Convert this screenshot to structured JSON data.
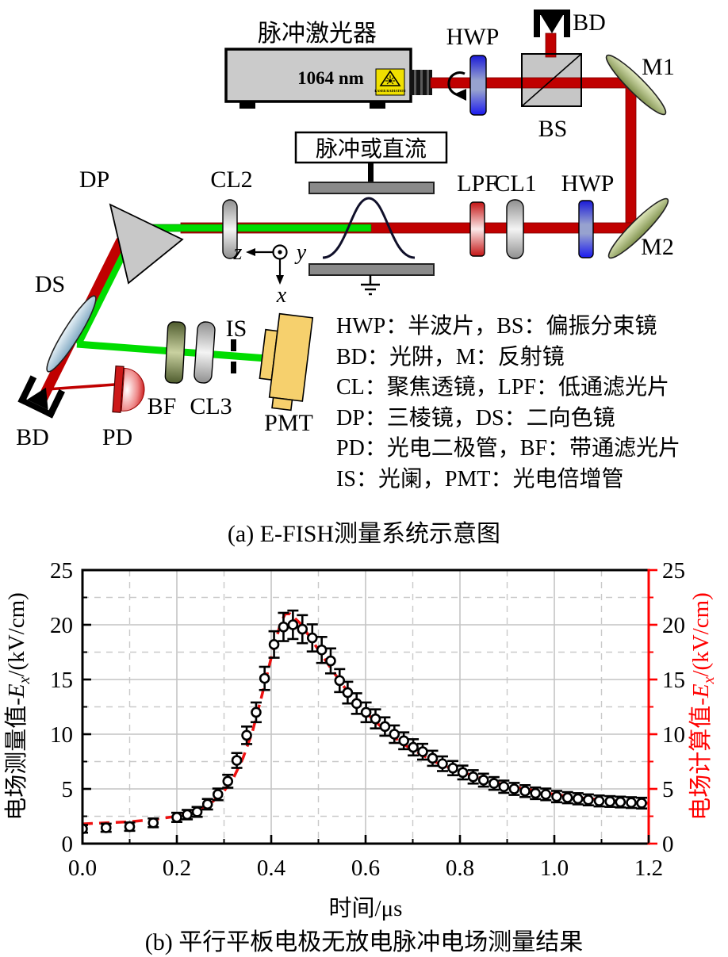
{
  "diagram": {
    "labels": {
      "laser_title": "脉冲激光器",
      "wavelength": "1064 nm",
      "sticker": "LASER RADIATION",
      "hwp1": "HWP",
      "bd_top": "BD",
      "bs": "BS",
      "m1": "M1",
      "m2": "M2",
      "lpf": "LPF",
      "cl1": "CL1",
      "hwp2": "HWP",
      "pulse_source": "脉冲或直流",
      "cl2": "CL2",
      "dp": "DP",
      "ds": "DS",
      "bd_bottom": "BD",
      "pd": "PD",
      "bf": "BF",
      "cl3": "CL3",
      "is": "IS",
      "pmt": "PMT",
      "axis_z": "z",
      "axis_y": "y",
      "axis_x": "x"
    },
    "legend_lines": [
      "HWP：半波片，BS：偏振分束镜",
      "BD：光阱，M：反射镜",
      "CL：聚焦透镜，LPF：低通滤光片",
      "DP：三棱镜，DS：二向色镜",
      "PD：光电二极管，BF：带通滤光片",
      "IS：光阑，PMT：光电倍增管"
    ],
    "colors": {
      "beam_red": "#c00000",
      "beam_green": "#00dd00",
      "mirror_green": "#9cab63",
      "dichroic_blue": "#a9c4d6",
      "hwp_blue": "#2020dd",
      "pmt_yellow": "#f6d06d"
    }
  },
  "captions": {
    "a": "(a) E-FISH测量系统示意图",
    "b": "(b) 平行平板电极无放电脉冲电场测量结果"
  },
  "chart_data": {
    "type": "scatter-errorbar+dashed-line",
    "title": "",
    "xlabel": "时间/μs",
    "ylabel_left": {
      "text": "电场测量值-",
      "var": "E",
      "sub": "x",
      "unit": "/(kV/cm)"
    },
    "ylabel_right": {
      "text": "电场计算值-",
      "var": "E",
      "sub": "x",
      "unit": "/(kV/cm)"
    },
    "xlim": [
      0,
      1.2
    ],
    "ylim": [
      0,
      25
    ],
    "x_major_ticks": [
      0.0,
      0.2,
      0.4,
      0.6,
      0.8,
      1.0,
      1.2
    ],
    "x_minor_ticks": [
      0.1,
      0.3,
      0.5,
      0.7,
      0.9,
      1.1
    ],
    "y_major_ticks": [
      0,
      5,
      10,
      15,
      20,
      25
    ],
    "y_minor_ticks": [
      2.5,
      7.5,
      12.5,
      17.5,
      22.5
    ],
    "grid": {
      "major": "solid",
      "minor": "dashed",
      "color": "#c9c9c9"
    },
    "left_axis_color": "#000000",
    "right_axis_color": "#ff0000",
    "series": [
      {
        "name": "measured",
        "style": "scatter+errorbar",
        "marker": "open-circle",
        "color": "#000000",
        "t": [
          0.0,
          0.05,
          0.1,
          0.15,
          0.2,
          0.222,
          0.243,
          0.265,
          0.287,
          0.308,
          0.327,
          0.348,
          0.368,
          0.386,
          0.406,
          0.426,
          0.446,
          0.466,
          0.487,
          0.507,
          0.526,
          0.545,
          0.562,
          0.581,
          0.601,
          0.621,
          0.641,
          0.661,
          0.681,
          0.701,
          0.721,
          0.742,
          0.763,
          0.785,
          0.806,
          0.828,
          0.85,
          0.872,
          0.893,
          0.915,
          0.938,
          0.96,
          0.982,
          1.005,
          1.028,
          1.05,
          1.072,
          1.095,
          1.118,
          1.14,
          1.163,
          1.185
        ],
        "E": [
          1.35,
          1.45,
          1.55,
          1.9,
          2.4,
          2.65,
          2.9,
          3.6,
          4.5,
          5.7,
          7.6,
          9.9,
          12.0,
          15.1,
          18.2,
          19.8,
          20.0,
          19.6,
          18.8,
          17.7,
          16.7,
          14.9,
          13.8,
          12.8,
          12.0,
          11.4,
          10.7,
          10.0,
          9.4,
          8.8,
          8.4,
          7.8,
          7.3,
          6.9,
          6.5,
          6.1,
          5.8,
          5.5,
          5.2,
          5.0,
          4.8,
          4.6,
          4.5,
          4.3,
          4.2,
          4.1,
          4.0,
          3.9,
          3.85,
          3.8,
          3.75,
          3.7
        ],
        "err": [
          0.35,
          0.37,
          0.38,
          0.4,
          0.42,
          0.43,
          0.45,
          0.48,
          0.53,
          0.59,
          0.68,
          0.8,
          0.9,
          1.06,
          1.21,
          1.29,
          1.3,
          1.28,
          1.24,
          1.19,
          1.14,
          1.05,
          0.99,
          0.94,
          0.9,
          0.87,
          0.84,
          0.8,
          0.77,
          0.74,
          0.72,
          0.69,
          0.67,
          0.65,
          0.63,
          0.61,
          0.59,
          0.58,
          0.56,
          0.55,
          0.54,
          0.53,
          0.53,
          0.52,
          0.51,
          0.51,
          0.5,
          0.5,
          0.49,
          0.49,
          0.49,
          0.49
        ]
      },
      {
        "name": "calculated",
        "style": "dashed-line",
        "color": "#ee1111",
        "t": [
          0.0,
          0.05,
          0.1,
          0.15,
          0.2,
          0.24,
          0.27,
          0.3,
          0.32,
          0.34,
          0.36,
          0.38,
          0.4,
          0.42,
          0.43,
          0.44,
          0.46,
          0.48,
          0.5,
          0.53,
          0.56,
          0.6,
          0.64,
          0.68,
          0.72,
          0.76,
          0.8,
          0.85,
          0.9,
          0.95,
          1.0,
          1.05,
          1.1,
          1.15,
          1.2
        ],
        "E": [
          1.8,
          1.9,
          2.0,
          2.2,
          2.5,
          3.0,
          3.6,
          4.8,
          6.0,
          7.8,
          10.2,
          13.5,
          17.0,
          20.2,
          21.0,
          21.0,
          20.2,
          19.0,
          17.7,
          15.8,
          14.0,
          12.0,
          10.4,
          9.1,
          8.1,
          7.2,
          6.6,
          5.9,
          5.3,
          4.9,
          4.5,
          4.2,
          4.0,
          3.8,
          3.7
        ]
      }
    ]
  }
}
